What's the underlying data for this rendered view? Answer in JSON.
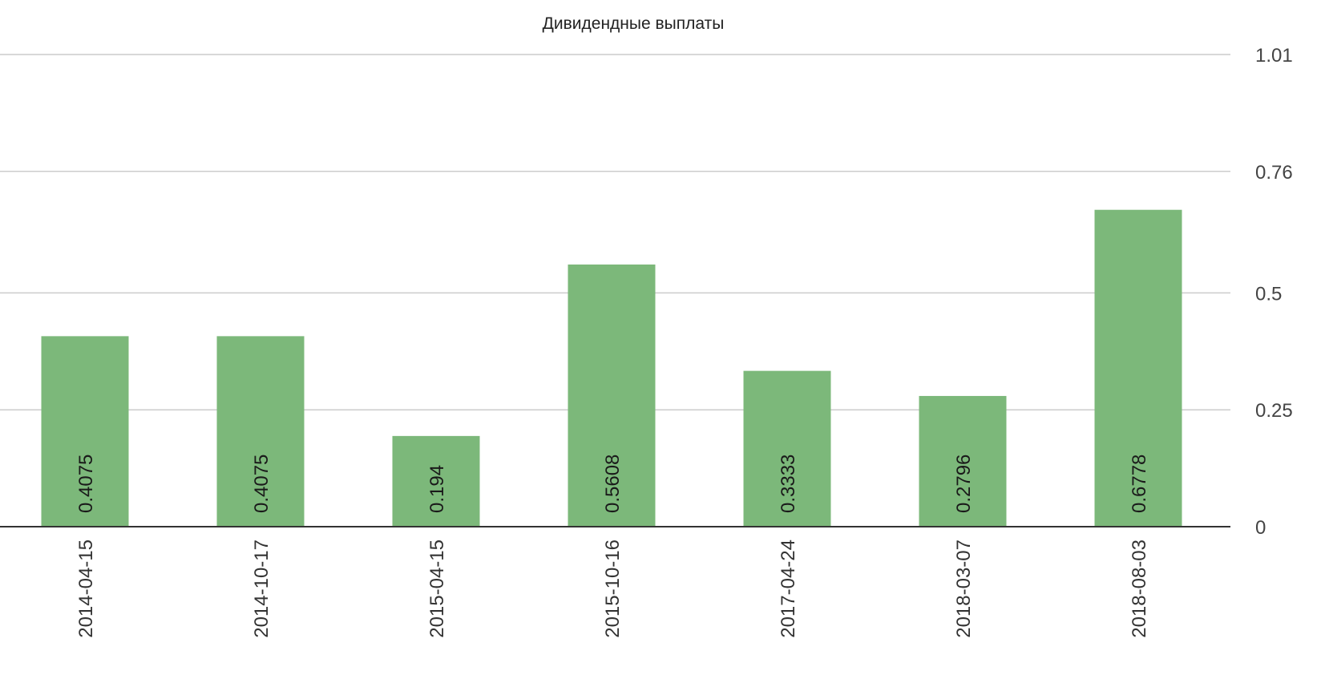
{
  "chart_data": {
    "type": "bar",
    "title": "Дивидендные выплаты",
    "xlabel": "",
    "ylabel": "",
    "categories": [
      "2014-04-15",
      "2014-10-17",
      "2015-04-15",
      "2015-10-16",
      "2017-04-24",
      "2018-03-07",
      "2018-08-03"
    ],
    "values": [
      0.4075,
      0.4075,
      0.194,
      0.5608,
      0.3333,
      0.2796,
      0.6778
    ],
    "data_labels": [
      "0.4075",
      "0.4075",
      "0.194",
      "0.5608",
      "0.3333",
      "0.2796",
      "0.6778"
    ],
    "y_ticks": [
      0,
      0.25,
      0.5,
      0.76,
      1.01
    ],
    "y_tick_labels": [
      "0",
      "0.25",
      "0.5",
      "0.76",
      "1.01"
    ],
    "ylim": [
      0,
      1.01
    ],
    "y_axis_position": "right",
    "grid": true,
    "legend": "none",
    "bar_color": "#7cb87a",
    "gridline_color": "#cccccc",
    "baseline_color": "#333333"
  }
}
